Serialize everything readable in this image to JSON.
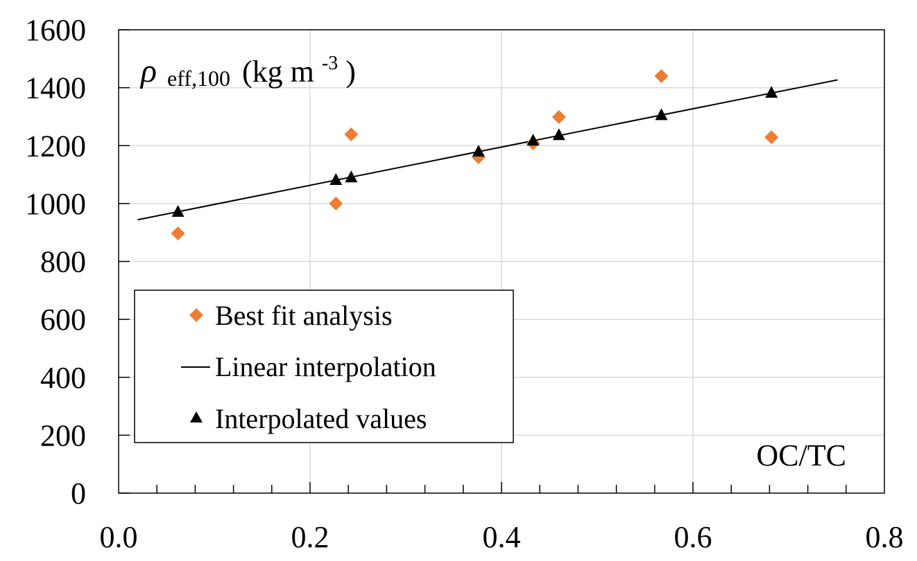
{
  "chart_data": {
    "type": "scatter",
    "title": "",
    "ylabel": "ρ eff,100 (kg m-3)",
    "ylabel_parts": {
      "symbol": "ρ",
      "subscript": "eff,100",
      "unit_open": "(kg m",
      "unit_sup": "-3",
      "unit_close": ")"
    },
    "xlabel": "OC/TC",
    "xlim": [
      0.0,
      0.8
    ],
    "ylim": [
      0,
      1600
    ],
    "x_ticks": [
      "0.0",
      "0.2",
      "0.4",
      "0.6",
      "0.8"
    ],
    "x_tick_values": [
      0.0,
      0.2,
      0.4,
      0.6,
      0.8
    ],
    "x_minor_step": 0.04,
    "y_ticks": [
      "0",
      "200",
      "400",
      "600",
      "800",
      "1000",
      "1200",
      "1400",
      "1600"
    ],
    "y_tick_values": [
      0,
      200,
      400,
      600,
      800,
      1000,
      1200,
      1400,
      1600
    ],
    "grid": true,
    "legend_position": "lower-left",
    "colors": {
      "best_fit": "#ED7D31",
      "interp": "#000000",
      "grid": "#D9D9D9"
    },
    "series": [
      {
        "name": "Best fit analysis",
        "marker": "diamond",
        "x": [
          0.062,
          0.227,
          0.243,
          0.376,
          0.433,
          0.46,
          0.567,
          0.682
        ],
        "y": [
          897,
          1000,
          1239,
          1160,
          1208,
          1299,
          1440,
          1229
        ]
      },
      {
        "name": "Linear interpolation",
        "marker": "line",
        "x": [
          0.02,
          0.751
        ],
        "y": [
          944,
          1427
        ]
      },
      {
        "name": "Interpolated values",
        "marker": "triangle",
        "x": [
          0.062,
          0.227,
          0.243,
          0.376,
          0.433,
          0.46,
          0.567,
          0.682
        ],
        "y": [
          971,
          1081,
          1090,
          1179,
          1217,
          1236,
          1305,
          1382
        ]
      }
    ]
  }
}
